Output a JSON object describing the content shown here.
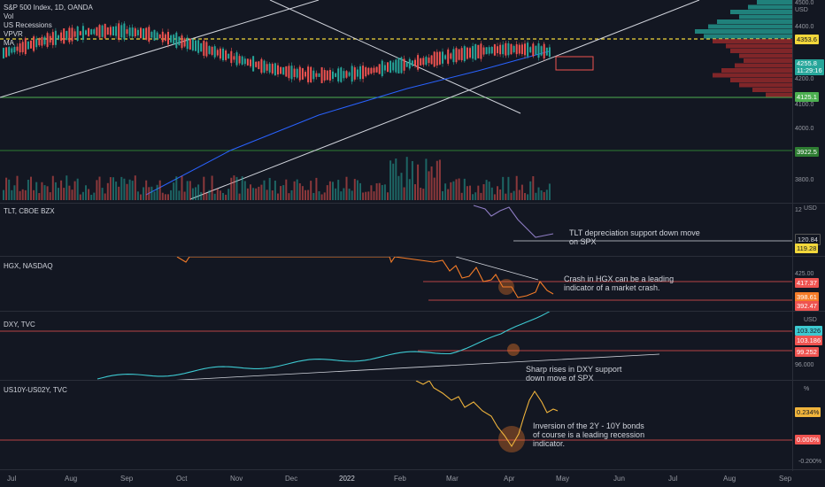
{
  "main": {
    "legend": [
      "S&P 500 Index, 1D, OANDA",
      "Vol",
      "US Recessions",
      "VPVR",
      "MA"
    ],
    "price_ticks": [
      "4500.0",
      "USD",
      "4400.0",
      "4300.0",
      "4200.0",
      "4100.0",
      "4000.0",
      "3900.0",
      "3800.0"
    ],
    "price_labels": {
      "resistance": "4353.6",
      "last": "4255.8",
      "countdown": "11:29:16",
      "support": "4125.1",
      "low": "3922.5"
    }
  },
  "tlt": {
    "legend": "TLT, CBOE BZX",
    "ticks": [
      "12",
      "USD"
    ],
    "labels": [
      "120.84",
      "119.28"
    ],
    "note": "TLT depreciation support down move on SPX"
  },
  "hgx": {
    "legend": "HGX, NASDAQ",
    "ticks": [
      "425.00"
    ],
    "labels": [
      "417.37",
      "398.61",
      "392.47"
    ],
    "note": "Crash in HGX can be a leading indicator of a market crash."
  },
  "dxy": {
    "legend": "DXY, TVC",
    "ticks": [
      "USD",
      "96.000"
    ],
    "labels": [
      "103.326",
      "103.186",
      "99.252"
    ],
    "note": "Sharp rises in DXY support down move of SPX"
  },
  "spread": {
    "legend": "US10Y-US02Y, TVC",
    "ticks": [
      "%",
      "-0.200%"
    ],
    "labels": [
      "0.234%",
      "0.000%"
    ],
    "note": "Inversion of the 2Y - 10Y bonds of course is a leading recession indicator."
  },
  "time_axis": [
    "Jul",
    "Aug",
    "Sep",
    "Oct",
    "Nov",
    "Dec",
    "2022",
    "Feb",
    "Mar",
    "Apr",
    "May",
    "Jun",
    "Jul",
    "Aug",
    "Sep"
  ],
  "colors": {
    "bg": "#131722",
    "up": "#26a69a",
    "down": "#ef5350",
    "yellow": "#f2d73b",
    "dxy": "#3dc9d1",
    "hgx": "#f57c28",
    "tlt": "#8e7cc3",
    "spread": "#f0b43c"
  }
}
